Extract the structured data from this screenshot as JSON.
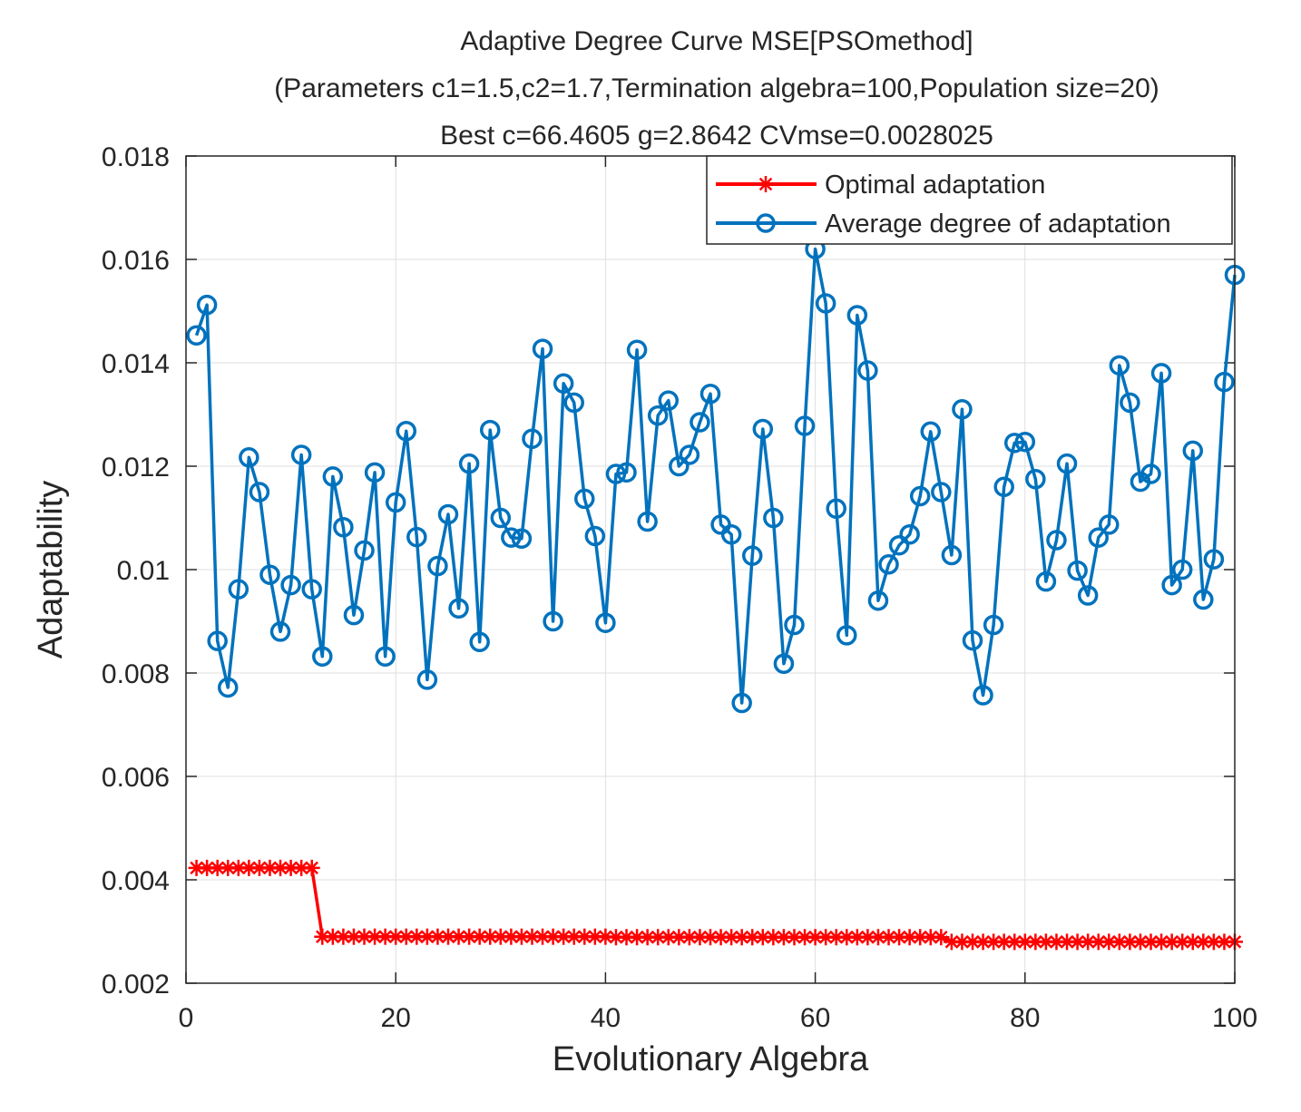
{
  "chart_data": {
    "type": "line",
    "title_lines": [
      "Adaptive Degree Curve MSE[PSOmethod]",
      "(Parameters c1=1.5,c2=1.7,Termination algebra=100,Population size=20)",
      "Best c=66.4605 g=2.8642 CVmse=0.0028025"
    ],
    "xlabel": "Evolutionary Algebra",
    "ylabel": "Adaptability",
    "xlim": [
      0,
      100
    ],
    "ylim": [
      0.002,
      0.018
    ],
    "xticks": [
      0,
      20,
      40,
      60,
      80,
      100
    ],
    "xtick_labels": [
      "0",
      "20",
      "40",
      "60",
      "80",
      "100"
    ],
    "yticks": [
      0.002,
      0.004,
      0.006,
      0.008,
      0.01,
      0.012,
      0.014,
      0.016,
      0.018
    ],
    "ytick_labels": [
      "0.002",
      "0.004",
      "0.006",
      "0.008",
      "0.01",
      "0.012",
      "0.014",
      "0.016",
      "0.018"
    ],
    "grid": true,
    "legend_position": "top-right",
    "series": [
      {
        "name": "Optimal adaptation",
        "color": "#ff0000",
        "marker": "asterisk",
        "x_start": 1,
        "values": [
          0.00423,
          0.00423,
          0.00423,
          0.00423,
          0.00423,
          0.00423,
          0.00423,
          0.00423,
          0.00423,
          0.00423,
          0.00423,
          0.00423,
          0.0029,
          0.0029,
          0.0029,
          0.0029,
          0.0029,
          0.0029,
          0.0029,
          0.0029,
          0.0029,
          0.0029,
          0.0029,
          0.0029,
          0.0029,
          0.0029,
          0.0029,
          0.0029,
          0.0029,
          0.0029,
          0.0029,
          0.0029,
          0.0029,
          0.0029,
          0.0029,
          0.0029,
          0.0029,
          0.0029,
          0.0029,
          0.0029,
          0.00289,
          0.00289,
          0.00289,
          0.00289,
          0.00289,
          0.00289,
          0.00289,
          0.00289,
          0.00289,
          0.00289,
          0.00289,
          0.00289,
          0.00289,
          0.00289,
          0.00289,
          0.00289,
          0.00289,
          0.00289,
          0.00289,
          0.00289,
          0.00289,
          0.00289,
          0.00289,
          0.00289,
          0.00289,
          0.00289,
          0.00289,
          0.00289,
          0.00289,
          0.00289,
          0.00289,
          0.00289,
          0.0028,
          0.0028,
          0.0028,
          0.0028,
          0.0028,
          0.0028,
          0.0028,
          0.0028,
          0.0028,
          0.0028,
          0.0028,
          0.0028,
          0.0028,
          0.0028,
          0.0028,
          0.0028,
          0.0028,
          0.0028,
          0.0028,
          0.0028,
          0.0028,
          0.0028,
          0.0028,
          0.0028,
          0.0028,
          0.0028,
          0.0028,
          0.0028
        ]
      },
      {
        "name": "Average degree of adaptation",
        "color": "#0072bd",
        "marker": "circle",
        "x_start": 1,
        "values": [
          0.01453,
          0.01512,
          0.00862,
          0.00772,
          0.00962,
          0.01217,
          0.0115,
          0.0099,
          0.0088,
          0.0097,
          0.01222,
          0.00962,
          0.00832,
          0.0118,
          0.01082,
          0.00912,
          0.01037,
          0.01188,
          0.00832,
          0.0113,
          0.01268,
          0.01063,
          0.00787,
          0.01007,
          0.01107,
          0.00925,
          0.01205,
          0.0086,
          0.0127,
          0.011,
          0.01062,
          0.0106,
          0.01253,
          0.01427,
          0.009,
          0.0136,
          0.01323,
          0.01137,
          0.01065,
          0.00897,
          0.01185,
          0.01188,
          0.01425,
          0.01093,
          0.01298,
          0.01327,
          0.012,
          0.01222,
          0.01285,
          0.0134,
          0.01087,
          0.01068,
          0.00742,
          0.01027,
          0.01272,
          0.011,
          0.00818,
          0.00893,
          0.01278,
          0.0162,
          0.01515,
          0.01118,
          0.00873,
          0.01492,
          0.01385,
          0.0094,
          0.0101,
          0.01047,
          0.01068,
          0.01142,
          0.01267,
          0.0115,
          0.01028,
          0.0131,
          0.00863,
          0.00757,
          0.00893,
          0.0116,
          0.01245,
          0.01247,
          0.01175,
          0.00977,
          0.01057,
          0.01205,
          0.00998,
          0.0095,
          0.01062,
          0.01087,
          0.01395,
          0.01323,
          0.0117,
          0.01185,
          0.0138,
          0.0097,
          0.01,
          0.0123,
          0.00942,
          0.0102,
          0.01363,
          0.0157
        ]
      }
    ]
  }
}
